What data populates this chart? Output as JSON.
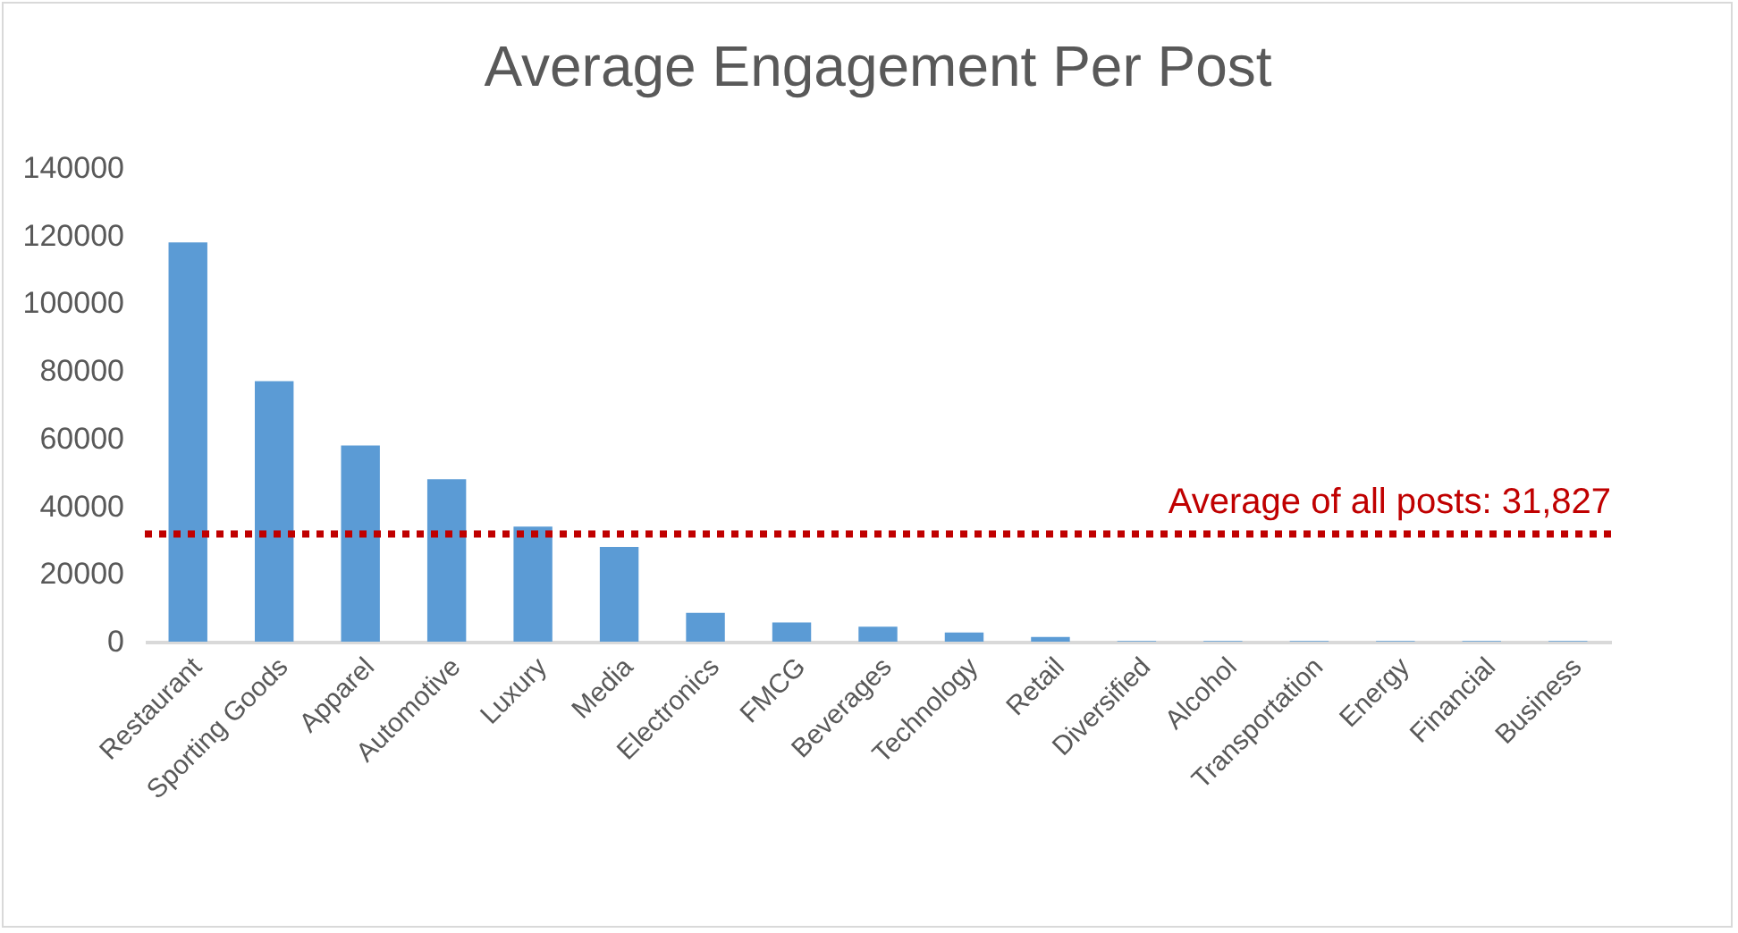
{
  "chart_data": {
    "type": "bar",
    "title": "Average Engagement Per Post",
    "categories": [
      "Restaurant",
      "Sporting Goods",
      "Apparel",
      "Automotive",
      "Luxury",
      "Media",
      "Electronics",
      "FMCG",
      "Beverages",
      "Technology",
      "Retail",
      "Diversified",
      "Alcohol",
      "Transportation",
      "Energy",
      "Financial",
      "Business"
    ],
    "values": [
      118000,
      77000,
      58000,
      48000,
      34000,
      28000,
      8500,
      5700,
      4400,
      2700,
      1400,
      200,
      200,
      200,
      200,
      200,
      200
    ],
    "color": "#5b9bd5",
    "ylim": [
      0,
      140000
    ],
    "yticks": [
      0,
      20000,
      40000,
      60000,
      80000,
      100000,
      120000,
      140000
    ],
    "grid": false,
    "ref_lines": [
      {
        "axis": "y",
        "value": 31827,
        "label": "Average of all posts: 31,827",
        "color": "#c00000",
        "line_style": "dotted"
      }
    ]
  }
}
